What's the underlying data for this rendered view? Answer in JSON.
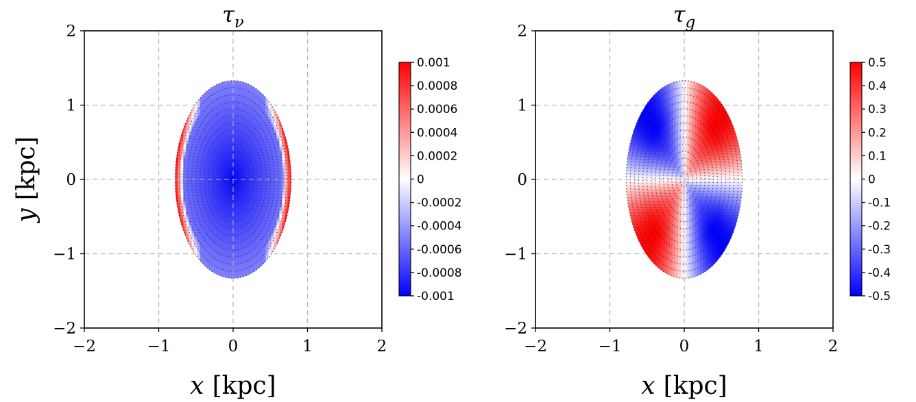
{
  "chart_data": [
    {
      "type": "heatmap",
      "title_symbol": "τ",
      "title_subscript": "ν",
      "xlabel_var": "x",
      "xlabel_unit": "[kpc]",
      "ylabel_var": "y",
      "ylabel_unit": "[kpc]",
      "xlim": [
        -2,
        2
      ],
      "ylim": [
        -2,
        2
      ],
      "x_ticks": [
        "−2",
        "−1",
        "0",
        "1",
        "2"
      ],
      "y_ticks": [
        "−2",
        "−1",
        "0",
        "1",
        "2"
      ],
      "grid": true,
      "grid_style": "dashed",
      "ellipse_semi_axes": {
        "a": 0.78,
        "b": 1.33
      },
      "colormap": "bwr",
      "colorbar": {
        "range": [
          -0.001,
          0.001
        ],
        "ticks": [
          "0.001",
          "0.0008",
          "0.0006",
          "0.0004",
          "0.0002",
          "0",
          "-0.0002",
          "-0.0004",
          "-0.0006",
          "-0.0008",
          "-0.001"
        ]
      },
      "field": {
        "kind": "radial",
        "center_value": -0.001,
        "edge_value": -0.0005,
        "edge_rim_value": 0.001,
        "rim_location": "left-right edges"
      },
      "scatter_overlay": {
        "style": "dotted concentric ellipses",
        "count": 14
      }
    },
    {
      "type": "heatmap",
      "title_symbol": "τ",
      "title_subscript": "g",
      "xlabel_var": "x",
      "xlabel_unit": "[kpc]",
      "ylabel_var": "",
      "ylabel_unit": "",
      "xlim": [
        -2,
        2
      ],
      "ylim": [
        -2,
        2
      ],
      "x_ticks": [
        "−2",
        "−1",
        "0",
        "1",
        "2"
      ],
      "y_ticks": [
        "−2",
        "−1",
        "0",
        "1",
        "2"
      ],
      "grid": true,
      "grid_style": "dashed",
      "ellipse_semi_axes": {
        "a": 0.78,
        "b": 1.33
      },
      "colormap": "bwr",
      "colorbar": {
        "range": [
          -0.5,
          0.5
        ],
        "ticks": [
          "0.5",
          "0.4",
          "0.3",
          "0.2",
          "0.1",
          "0",
          "-0.1",
          "-0.2",
          "-0.3",
          "-0.4",
          "-0.5"
        ]
      },
      "field": {
        "kind": "quadrupole",
        "quadrant_values": {
          "upper-left": -0.5,
          "upper-right": 0.5,
          "lower-left": 0.5,
          "lower-right": -0.5
        }
      },
      "scatter_overlay": {
        "style": "dotted concentric ellipses",
        "count": 14
      }
    }
  ]
}
